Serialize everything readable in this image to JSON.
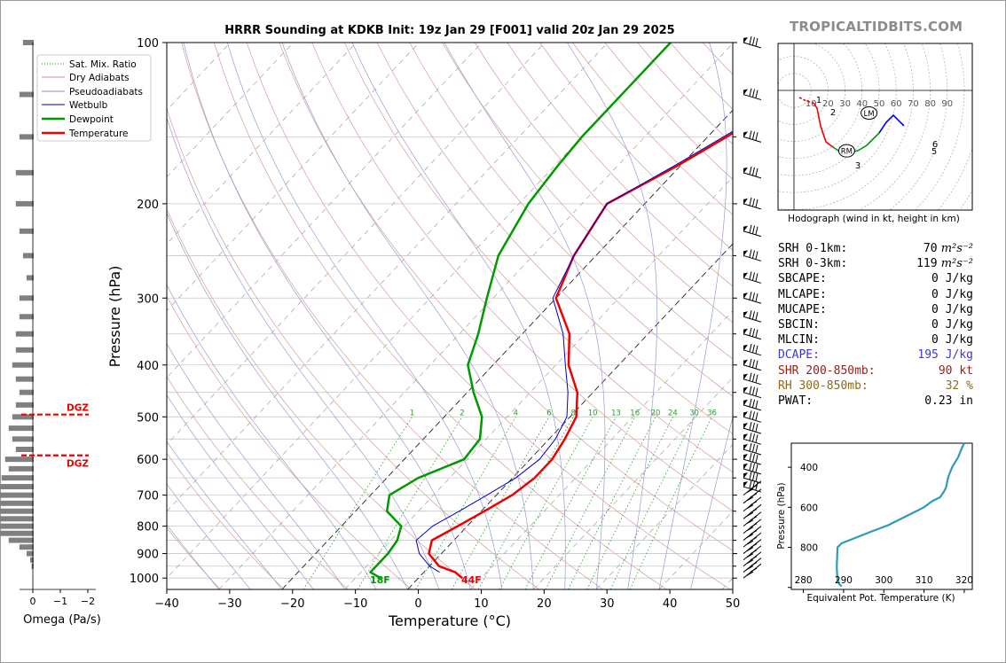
{
  "brand": "TROPICALTIDBITS.COM",
  "title": "HRRR Sounding at KDKB Init: 19z Jan 29 [F001] valid 20z Jan 29 2025",
  "skewt": {
    "xlabel": "Temperature (°C)",
    "ylabel": "Pressure (hPa)",
    "x_ticks": [
      "−40",
      "−30",
      "−20",
      "−10",
      "0",
      "10",
      "20",
      "30",
      "40",
      "50"
    ],
    "y_ticks": [
      "100",
      "200",
      "300",
      "400",
      "500",
      "600",
      "700",
      "800",
      "900",
      "1000"
    ],
    "legend": [
      "Sat. Mix. Ratio",
      "Dry Adiabats",
      "Pseudoadiabats",
      "Wetbulb",
      "Dewpoint",
      "Temperature"
    ],
    "mixing_ratio_labels": [
      "1",
      "2",
      "4",
      "6",
      "8",
      "10",
      "13",
      "16",
      "20",
      "24",
      "30",
      "36"
    ],
    "surface_dewpoint_label": "18F",
    "surface_temperature_label": "44F"
  },
  "omega": {
    "xlabel": "Omega (Pa/s)",
    "x_ticks": [
      "0",
      "−1",
      "−2"
    ],
    "dgz_label": "DGZ"
  },
  "hodograph": {
    "caption": "Hodograph (wind in kt, height in km)",
    "ring_labels": [
      "10",
      "20",
      "30",
      "40",
      "50",
      "60",
      "70",
      "80",
      "90"
    ],
    "height_labels": [
      "1",
      "2",
      "3",
      "5",
      "6"
    ],
    "lm_label": "LM",
    "rm_label": "RM"
  },
  "indices": [
    {
      "label": "SRH 0-1km:",
      "value": "70",
      "unit": "m²s⁻²",
      "color": "#000000"
    },
    {
      "label": "SRH 0-3km:",
      "value": "119",
      "unit": "m²s⁻²",
      "color": "#000000"
    },
    {
      "label": "SBCAPE:",
      "value": "0 J/kg",
      "unit": "",
      "color": "#000000"
    },
    {
      "label": "MLCAPE:",
      "value": "0 J/kg",
      "unit": "",
      "color": "#000000"
    },
    {
      "label": "MUCAPE:",
      "value": "0 J/kg",
      "unit": "",
      "color": "#000000"
    },
    {
      "label": "SBCIN:",
      "value": "0 J/kg",
      "unit": "",
      "color": "#000000"
    },
    {
      "label": "MLCIN:",
      "value": "0 J/kg",
      "unit": "",
      "color": "#000000"
    },
    {
      "label": "DCAPE:",
      "value": "195 J/kg",
      "unit": "",
      "color": "#3a3ad6"
    },
    {
      "label": "SHR 200-850mb:",
      "value": "90 kt",
      "unit": "",
      "color": "#9b1b1b"
    },
    {
      "label": "RH 300-850mb:",
      "value": "32 %",
      "unit": "",
      "color": "#8b6a14"
    },
    {
      "label": "PWAT:",
      "value": "0.23 in",
      "unit": "",
      "color": "#000000"
    }
  ],
  "theta_e_panel": {
    "xlabel": "Equivalent Pot. Temperature (K)",
    "ylabel": "Pressure (hPa)",
    "x_ticks": [
      "280",
      "290",
      "300",
      "310",
      "320"
    ],
    "y_ticks": [
      "400",
      "600",
      "800"
    ]
  },
  "chart_data": [
    {
      "type": "line",
      "name": "skew-t",
      "xlim": [
        -40,
        50
      ],
      "ylim": [
        1050,
        100
      ],
      "y_scale": "log",
      "series": [
        {
          "name": "Temperature",
          "color": "#ee0000",
          "points": [
            [
              7.0,
              1000
            ],
            [
              5.0,
              975
            ],
            [
              1.5,
              950
            ],
            [
              -2.0,
              900
            ],
            [
              -3.5,
              850
            ],
            [
              -1.5,
              800
            ],
            [
              0.5,
              750
            ],
            [
              2.5,
              700
            ],
            [
              3.5,
              650
            ],
            [
              3.5,
              600
            ],
            [
              2.5,
              550
            ],
            [
              1.0,
              500
            ],
            [
              -2.5,
              450
            ],
            [
              -8.0,
              400
            ],
            [
              -12.5,
              350
            ],
            [
              -20.0,
              300
            ],
            [
              -23.5,
              250
            ],
            [
              -26.0,
              200
            ],
            [
              -20.5,
              170
            ],
            [
              -17.0,
              150
            ],
            [
              -11.0,
              120
            ],
            [
              -7.5,
              100
            ]
          ]
        },
        {
          "name": "Dewpoint",
          "color": "#009900",
          "points": [
            [
              -6.0,
              1000
            ],
            [
              -8.5,
              975
            ],
            [
              -8.5,
              900
            ],
            [
              -9.0,
              850
            ],
            [
              -10.5,
              800
            ],
            [
              -15.0,
              750
            ],
            [
              -17.0,
              700
            ],
            [
              -15.0,
              650
            ],
            [
              -10.5,
              600
            ],
            [
              -11.0,
              550
            ],
            [
              -14.0,
              500
            ],
            [
              -19.0,
              450
            ],
            [
              -24.0,
              400
            ],
            [
              -27.0,
              350
            ],
            [
              -31.0,
              300
            ],
            [
              -35.5,
              250
            ],
            [
              -38.5,
              200
            ],
            [
              -39.5,
              170
            ],
            [
              -40.0,
              150
            ],
            [
              -40.0,
              120
            ],
            [
              -40.0,
              100
            ]
          ]
        },
        {
          "name": "Wetbulb",
          "color": "#0000cc",
          "points": [
            [
              2.5,
              975
            ],
            [
              0.0,
              950
            ],
            [
              -3.5,
              900
            ],
            [
              -6.0,
              850
            ],
            [
              -5.5,
              800
            ],
            [
              -3.5,
              750
            ],
            [
              -1.5,
              700
            ],
            [
              0.5,
              650
            ],
            [
              1.5,
              600
            ],
            [
              1.0,
              550
            ],
            [
              -0.5,
              500
            ],
            [
              -4.0,
              450
            ],
            [
              -8.5,
              400
            ],
            [
              -13.5,
              350
            ],
            [
              -20.5,
              300
            ],
            [
              -23.5,
              250
            ],
            [
              -26.0,
              200
            ],
            [
              -21.0,
              170
            ],
            [
              -17.5,
              150
            ],
            [
              -11.5,
              120
            ],
            [
              -8.0,
              100
            ]
          ]
        }
      ]
    },
    {
      "type": "bar",
      "name": "omega",
      "xlim": [
        0.3,
        -2.5
      ],
      "values": [
        [
          100,
          0.15
        ],
        [
          125,
          0.2
        ],
        [
          150,
          0.2
        ],
        [
          175,
          0.25
        ],
        [
          200,
          0.25
        ],
        [
          225,
          0.2
        ],
        [
          250,
          0.15
        ],
        [
          275,
          0.1
        ],
        [
          300,
          0.2
        ],
        [
          325,
          0.2
        ],
        [
          350,
          0.25
        ],
        [
          375,
          0.25
        ],
        [
          400,
          0.3
        ],
        [
          425,
          0.25
        ],
        [
          450,
          0.2
        ],
        [
          475,
          0.25
        ],
        [
          500,
          0.3
        ],
        [
          525,
          0.35
        ],
        [
          550,
          0.3
        ],
        [
          575,
          0.25
        ],
        [
          600,
          0.4
        ],
        [
          625,
          0.35
        ],
        [
          650,
          0.45
        ],
        [
          675,
          0.55
        ],
        [
          700,
          0.65
        ],
        [
          725,
          0.7
        ],
        [
          750,
          0.75
        ],
        [
          775,
          0.8
        ],
        [
          800,
          0.7
        ],
        [
          825,
          0.5
        ],
        [
          850,
          0.35
        ],
        [
          875,
          0.2
        ],
        [
          900,
          0.1
        ],
        [
          925,
          0.05
        ],
        [
          950,
          0.03
        ]
      ],
      "dgz_levels": [
        495,
        590
      ]
    },
    {
      "type": "line",
      "name": "hodograph",
      "series": [
        {
          "name": "0-1km",
          "color": "#ee0000",
          "points": [
            [
              6,
              -8
            ],
            [
              14,
              -12
            ],
            [
              22,
              -14
            ]
          ]
        },
        {
          "name": "1-3km",
          "color": "#ee0000",
          "points": [
            [
              22,
              -14
            ],
            [
              26,
              -20
            ],
            [
              30,
              -40
            ],
            [
              36,
              -58
            ],
            [
              44,
              -64
            ]
          ]
        },
        {
          "name": "3-5km",
          "color": "#009900",
          "points": [
            [
              44,
              -64
            ],
            [
              50,
              -68
            ],
            [
              60,
              -70
            ],
            [
              72,
              -68
            ],
            [
              82,
              -62
            ],
            [
              90,
              -54
            ],
            [
              96,
              -48
            ]
          ]
        },
        {
          "name": "5-9km",
          "color": "#0000ee",
          "points": [
            [
              96,
              -48
            ],
            [
              104,
              -36
            ],
            [
              112,
              -28
            ],
            [
              124,
              -40
            ]
          ]
        }
      ],
      "storm_motion": {
        "LM": [
          47,
          -17
        ],
        "RM": [
          36,
          -47
        ]
      }
    },
    {
      "type": "line",
      "name": "theta-e",
      "xlim": [
        277,
        322
      ],
      "ylim": [
        1010,
        280
      ],
      "series": [
        {
          "name": "Equivalent Pot. Temperature",
          "color": "#2f9bb8",
          "points": [
            [
              289.5,
              995
            ],
            [
              289.0,
              985
            ],
            [
              288.5,
              960
            ],
            [
              288.3,
              900
            ],
            [
              288.5,
              800
            ],
            [
              289.5,
              780
            ],
            [
              292,
              760
            ],
            [
              297,
              720
            ],
            [
              301,
              690
            ],
            [
              304,
              660
            ],
            [
              307,
              630
            ],
            [
              310,
              600
            ],
            [
              312,
              570
            ],
            [
              314,
              550
            ],
            [
              315,
              520
            ],
            [
              315.5,
              500
            ],
            [
              316,
              450
            ],
            [
              317,
              400
            ],
            [
              318.5,
              350
            ],
            [
              319.5,
              300
            ],
            [
              320,
              280
            ]
          ]
        }
      ]
    }
  ]
}
